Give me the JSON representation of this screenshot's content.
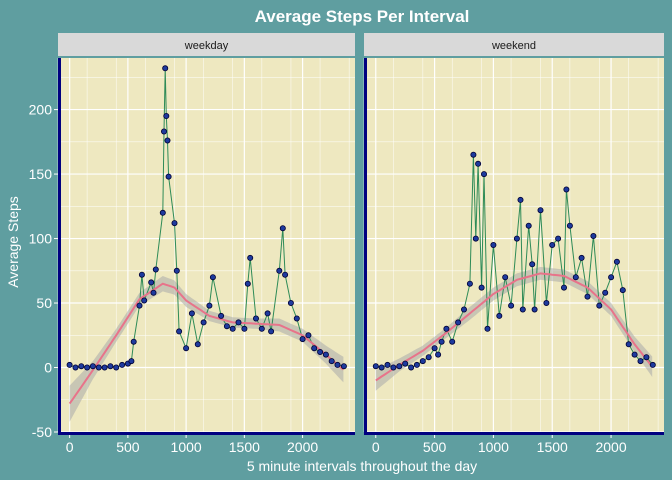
{
  "colors": {
    "background": "#5f9ea0",
    "panel": "#eee8c0",
    "strip": "#d9d9d9",
    "grid": "#ffffff",
    "axis_line": "#000080",
    "line": "#2e8b57",
    "point_fill": "#1e3a9e",
    "point_stroke": "#000033",
    "smooth": "#e8738a",
    "band": "#a9a9a9"
  },
  "chart_data": {
    "type": "line",
    "title": "Average Steps Per Interval",
    "xlabel": "5 minute intervals throughout the day",
    "ylabel": "Average Steps",
    "xlim": [
      -100,
      2450
    ],
    "ylim": [
      -50,
      240
    ],
    "x_ticks": [
      0,
      500,
      1000,
      1500,
      2000
    ],
    "x_tick_labels": [
      "0",
      "500",
      "1000",
      "1500",
      "2000"
    ],
    "y_ticks": [
      -50,
      0,
      50,
      100,
      150,
      200
    ],
    "y_tick_labels": [
      "-50",
      "0",
      "50",
      "100",
      "150",
      "200"
    ],
    "grid": true,
    "layers": [
      "line",
      "points",
      "loess smooth with confidence band"
    ],
    "panels": [
      {
        "label": "weekday",
        "x": [
          0,
          50,
          100,
          150,
          200,
          250,
          300,
          350,
          400,
          450,
          500,
          530,
          550,
          600,
          620,
          640,
          700,
          720,
          740,
          800,
          810,
          820,
          830,
          840,
          850,
          900,
          920,
          940,
          1000,
          1050,
          1100,
          1150,
          1200,
          1230,
          1300,
          1350,
          1400,
          1450,
          1500,
          1530,
          1550,
          1600,
          1650,
          1700,
          1730,
          1800,
          1830,
          1850,
          1900,
          1950,
          2000,
          2050,
          2100,
          2150,
          2200,
          2250,
          2300,
          2355
        ],
        "y": [
          2,
          0,
          1,
          0,
          1,
          0,
          0,
          1,
          0,
          2,
          3,
          5,
          20,
          48,
          72,
          52,
          66,
          58,
          76,
          120,
          183,
          232,
          195,
          176,
          148,
          112,
          75,
          28,
          15,
          42,
          18,
          35,
          48,
          70,
          40,
          32,
          30,
          35,
          30,
          65,
          85,
          38,
          30,
          42,
          28,
          75,
          108,
          72,
          50,
          38,
          22,
          25,
          15,
          12,
          10,
          5,
          2,
          1
        ],
        "smooth": [
          [
            0,
            -28
          ],
          [
            200,
            -2
          ],
          [
            400,
            25
          ],
          [
            600,
            53
          ],
          [
            800,
            65
          ],
          [
            900,
            62
          ],
          [
            1000,
            52
          ],
          [
            1200,
            40
          ],
          [
            1400,
            35
          ],
          [
            1600,
            34
          ],
          [
            1800,
            33
          ],
          [
            2000,
            25
          ],
          [
            2200,
            10
          ],
          [
            2355,
            -2
          ]
        ],
        "band_halfwidth": [
          [
            0,
            14
          ],
          [
            200,
            7
          ],
          [
            400,
            5
          ],
          [
            600,
            5
          ],
          [
            800,
            6
          ],
          [
            1000,
            5
          ],
          [
            1200,
            4
          ],
          [
            1400,
            4
          ],
          [
            1600,
            4
          ],
          [
            1800,
            5
          ],
          [
            2000,
            5
          ],
          [
            2200,
            7
          ],
          [
            2355,
            10
          ]
        ]
      },
      {
        "label": "weekend",
        "x": [
          0,
          50,
          100,
          150,
          200,
          250,
          300,
          350,
          400,
          450,
          500,
          530,
          560,
          600,
          650,
          700,
          750,
          800,
          830,
          850,
          870,
          900,
          920,
          950,
          1000,
          1050,
          1100,
          1150,
          1200,
          1230,
          1250,
          1300,
          1330,
          1350,
          1400,
          1450,
          1500,
          1550,
          1600,
          1620,
          1650,
          1700,
          1750,
          1800,
          1850,
          1900,
          1950,
          2000,
          2050,
          2100,
          2150,
          2200,
          2250,
          2300,
          2355
        ],
        "y": [
          1,
          0,
          2,
          0,
          1,
          3,
          0,
          2,
          5,
          8,
          15,
          10,
          20,
          30,
          20,
          35,
          45,
          65,
          165,
          100,
          158,
          62,
          150,
          30,
          95,
          40,
          70,
          48,
          100,
          130,
          45,
          110,
          80,
          45,
          122,
          50,
          95,
          100,
          62,
          138,
          110,
          70,
          85,
          55,
          102,
          48,
          58,
          70,
          82,
          60,
          18,
          10,
          5,
          8,
          2
        ],
        "smooth": [
          [
            0,
            -10
          ],
          [
            200,
            2
          ],
          [
            400,
            13
          ],
          [
            600,
            27
          ],
          [
            800,
            42
          ],
          [
            1000,
            57
          ],
          [
            1200,
            68
          ],
          [
            1400,
            73
          ],
          [
            1600,
            71
          ],
          [
            1800,
            62
          ],
          [
            2000,
            45
          ],
          [
            2200,
            18
          ],
          [
            2355,
            0
          ]
        ],
        "band_halfwidth": [
          [
            0,
            8
          ],
          [
            200,
            5
          ],
          [
            400,
            4
          ],
          [
            600,
            4
          ],
          [
            800,
            5
          ],
          [
            1000,
            5
          ],
          [
            1200,
            5
          ],
          [
            1400,
            5
          ],
          [
            1600,
            5
          ],
          [
            1800,
            5
          ],
          [
            2000,
            5
          ],
          [
            2200,
            6
          ],
          [
            2355,
            8
          ]
        ]
      }
    ]
  }
}
